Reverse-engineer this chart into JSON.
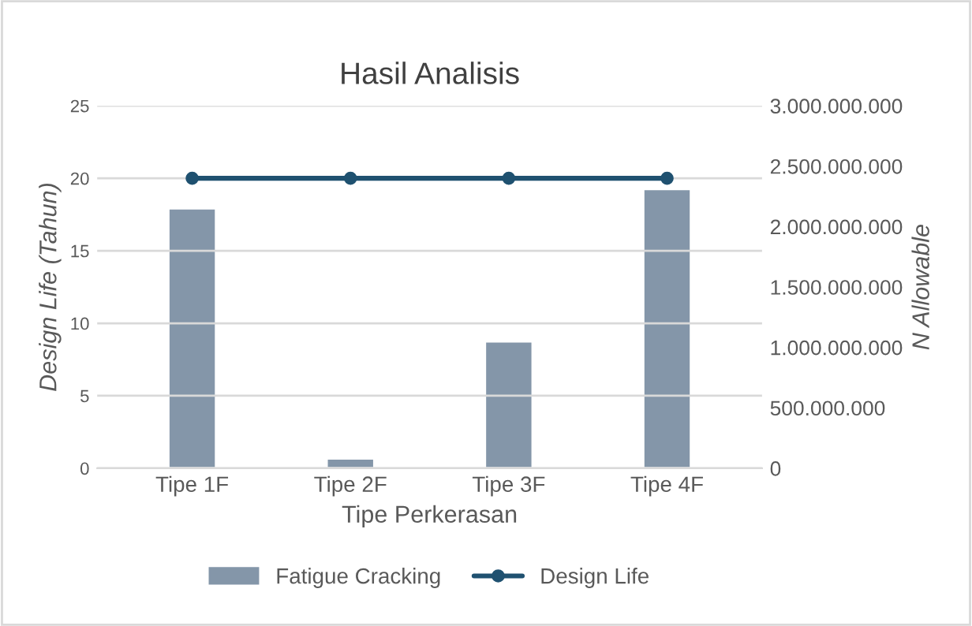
{
  "chart_data": {
    "type": "bar",
    "title": "Hasil Analisis",
    "xlabel": "Tipe Perkerasan",
    "ylabel": "Design Life (Tahun)",
    "y2label": "N Allowable",
    "categories": [
      "Tipe 1F",
      "Tipe 2F",
      "Tipe 3F",
      "Tipe 4F"
    ],
    "series": [
      {
        "name": "Fatigue Cracking",
        "axis": "y2",
        "color": "#8496a9",
        "values": [
          2150000000,
          80000000,
          1050000000,
          2310000000
        ]
      },
      {
        "name": "Design Life",
        "type": "line",
        "color": "#1f5170",
        "marker": "circle",
        "values": [
          20,
          20,
          20,
          20
        ]
      }
    ],
    "ylim": [
      0,
      25
    ],
    "yticks": [
      0,
      5,
      10,
      15,
      20,
      25
    ],
    "y2lim": [
      0,
      3000000000
    ],
    "y2ticks": [
      {
        "value": 0,
        "label": "0"
      },
      {
        "value": 500000000,
        "label": "500.000.000"
      },
      {
        "value": 1000000000,
        "label": "1.000.000.000"
      },
      {
        "value": 1500000000,
        "label": "1.500.000.000"
      },
      {
        "value": 2000000000,
        "label": "2.000.000.000"
      },
      {
        "value": 2500000000,
        "label": "2.500.000.000"
      },
      {
        "value": 3000000000,
        "label": "3.000.000.000"
      }
    ],
    "grid": "y",
    "legend": "bottom"
  }
}
